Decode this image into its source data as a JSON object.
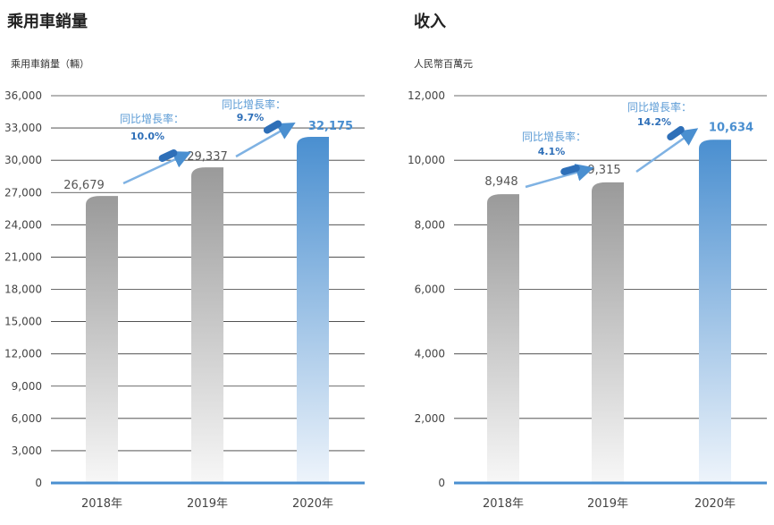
{
  "colors": {
    "accent": "#4a8fd0",
    "grid": "#333333",
    "baseline": "#4a8fd0",
    "gray_bar": "#9c9c9c"
  },
  "chart_data": [
    {
      "type": "bar",
      "title": "乘用車銷量",
      "ylabel": "乘用車銷量（輛）",
      "categories": [
        "2018年",
        "2019年",
        "2020年"
      ],
      "values": [
        26679,
        29337,
        32175
      ],
      "value_labels": [
        "26,679",
        "29,337",
        "32,175"
      ],
      "growth": [
        {
          "label": "同比增長率：",
          "value": "10.0%"
        },
        {
          "label": "同比增長率：",
          "value": "9.7%"
        }
      ],
      "ylim": [
        0,
        36000
      ],
      "yticks": [
        "0",
        "3,000",
        "6,000",
        "9,000",
        "12,000",
        "15,000",
        "18,000",
        "21,000",
        "24,000",
        "27,000",
        "30,000",
        "33,000",
        "36,000"
      ],
      "grid": true
    },
    {
      "type": "bar",
      "title": "收入",
      "ylabel": "人民幣百萬元",
      "categories": [
        "2018年",
        "2019年",
        "2020年"
      ],
      "values": [
        8948,
        9315,
        10634
      ],
      "value_labels": [
        "8,948",
        "9,315",
        "10,634"
      ],
      "growth": [
        {
          "label": "同比增長率：",
          "value": "4.1%"
        },
        {
          "label": "同比增長率：",
          "value": "14.2%"
        }
      ],
      "ylim": [
        0,
        12000
      ],
      "yticks": [
        "0",
        "2,000",
        "4,000",
        "6,000",
        "8,000",
        "10,000",
        "12,000"
      ],
      "grid": true
    }
  ]
}
